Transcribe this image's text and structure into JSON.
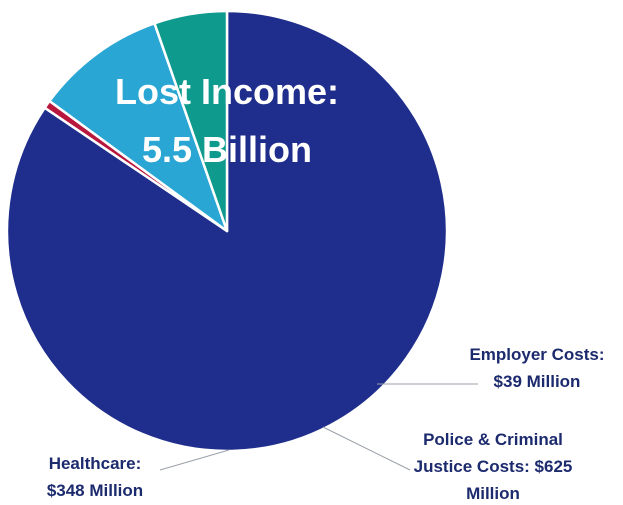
{
  "chart_data": {
    "type": "pie",
    "title": "",
    "slices": [
      {
        "key": "lost-income",
        "label_lines": [
          "Lost Income:",
          "5.5 Billion"
        ],
        "value": 5500,
        "unit": "Million",
        "color": "#1f2e8c"
      },
      {
        "key": "employer-costs",
        "label_lines": [
          "Employer Costs:",
          "$39 Million"
        ],
        "value": 39,
        "unit": "Million",
        "color": "#b8173d"
      },
      {
        "key": "police-criminal-justice",
        "label_lines": [
          "Police & Criminal",
          "Justice Costs: $625",
          "Million"
        ],
        "value": 625,
        "unit": "Million",
        "color": "#29a6d3"
      },
      {
        "key": "healthcare",
        "label_lines": [
          "Healthcare:",
          "$348 Million"
        ],
        "value": 348,
        "unit": "Million",
        "color": "#0e9a8d"
      }
    ]
  }
}
